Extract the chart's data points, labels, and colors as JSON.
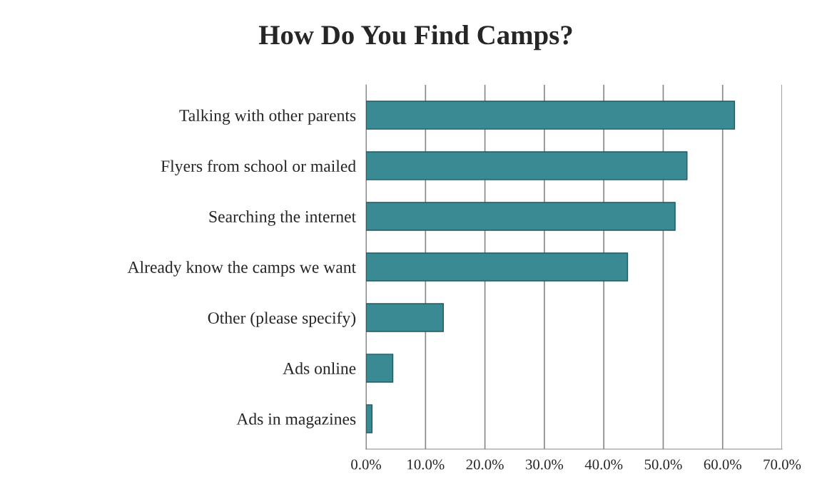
{
  "chart_data": {
    "type": "bar",
    "orientation": "horizontal",
    "title": "How Do You Find Camps?",
    "categories": [
      "Talking with other parents",
      "Flyers from school or mailed",
      "Searching the internet",
      "Already know the camps we want",
      "Other (please specify)",
      "Ads online",
      "Ads in magazines"
    ],
    "values": [
      62,
      54,
      52,
      44,
      13,
      4.5,
      1
    ],
    "color": "#3a8a94",
    "xlim": [
      0,
      70
    ],
    "xticks": [
      {
        "value": 0,
        "label": "0.0%"
      },
      {
        "value": 10,
        "label": "10.0%"
      },
      {
        "value": 20,
        "label": "20.0%"
      },
      {
        "value": 30,
        "label": "30.0%"
      },
      {
        "value": 40,
        "label": "40.0%"
      },
      {
        "value": 50,
        "label": "50.0%"
      },
      {
        "value": 60,
        "label": "60.0%"
      },
      {
        "value": 70,
        "label": "70.0%"
      }
    ],
    "grid": "x",
    "legend": false
  }
}
